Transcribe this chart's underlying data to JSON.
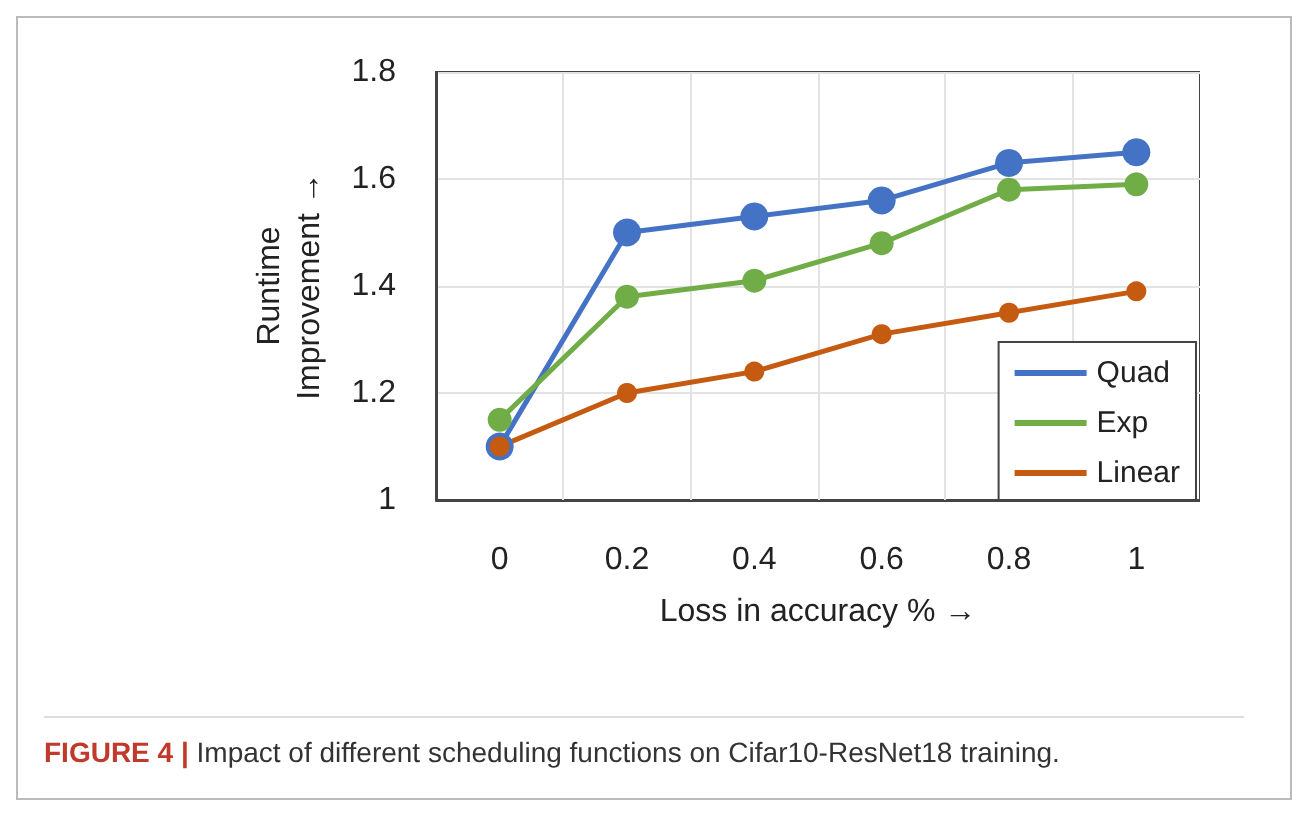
{
  "chart_data": {
    "type": "line",
    "xlabel": "Loss in accuracy % →",
    "ylabel": "Runtime\nImprovement →",
    "annotations": [
      "FIGURE 4 | Impact of different scheduling functions on Cifar10-ResNet18 training."
    ],
    "categories": [
      "0",
      "0.2",
      "0.4",
      "0.6",
      "0.8",
      "1"
    ],
    "series": [
      {
        "name": "Quad",
        "color": "#4472c4",
        "values": [
          1.1,
          1.5,
          1.53,
          1.56,
          1.63,
          1.65
        ]
      },
      {
        "name": "Exp",
        "color": "#70ad47",
        "values": [
          1.15,
          1.38,
          1.41,
          1.48,
          1.58,
          1.59
        ]
      },
      {
        "name": "Linear",
        "color": "#c55a11",
        "values": [
          1.1,
          1.2,
          1.24,
          1.31,
          1.35,
          1.39
        ]
      }
    ],
    "ylim": [
      1,
      1.8
    ],
    "yticks": [
      1,
      1.2,
      1.4,
      1.6,
      1.8
    ],
    "grid": true,
    "legend": "bottom right",
    "marker": "circle",
    "line_style": "solid"
  }
}
